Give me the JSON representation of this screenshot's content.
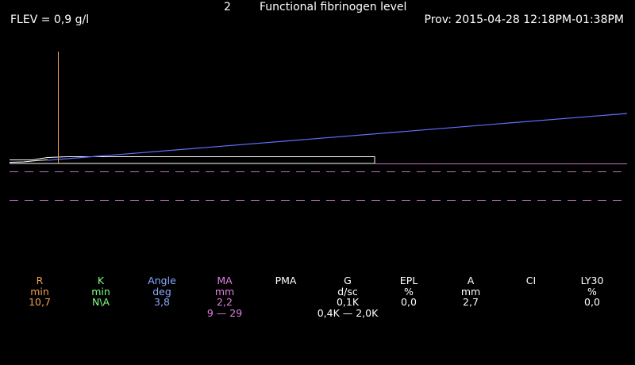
{
  "header": {
    "channel": "2",
    "test_name": "Functional fibrinogen level",
    "flev": "FLEV = 0,9 g/l",
    "sample": "Prov: 2015-04-28 12:18PM-01:38PM"
  },
  "parameters": [
    {
      "name": "R",
      "unit": "min",
      "value": "10,7",
      "range": "",
      "color": "#f0a050"
    },
    {
      "name": "K",
      "unit": "min",
      "value": "N\\A",
      "range": "",
      "color": "#80ff80"
    },
    {
      "name": "Angle",
      "unit": "deg",
      "value": "3,8",
      "range": "",
      "color": "#8aa8ff"
    },
    {
      "name": "MA",
      "unit": "mm",
      "value": "2,2",
      "range": "9 — 29",
      "color": "#e080e0"
    },
    {
      "name": "PMA",
      "unit": "",
      "value": "",
      "range": "",
      "color": "#ffffff"
    },
    {
      "name": "G",
      "unit": "d/sc",
      "value": "0,1K",
      "range": "0,4K — 2,0K",
      "color": "#ffffff"
    },
    {
      "name": "EPL",
      "unit": "%",
      "value": "0,0",
      "range": "",
      "color": "#ffffff"
    },
    {
      "name": "A",
      "unit": "mm",
      "value": "2,7",
      "range": "",
      "color": "#ffffff"
    },
    {
      "name": "CI",
      "unit": "",
      "value": "",
      "range": "",
      "color": "#ffffff"
    },
    {
      "name": "LY30",
      "unit": "%",
      "value": "0,0",
      "range": "",
      "color": "#ffffff"
    }
  ],
  "colors": {
    "background": "#000000",
    "text": "#ffffff",
    "tracing": "#ffffff",
    "angle_line": "#6070ff",
    "r_marker": "#f0a050",
    "reference_lines": "#c070c0"
  }
}
